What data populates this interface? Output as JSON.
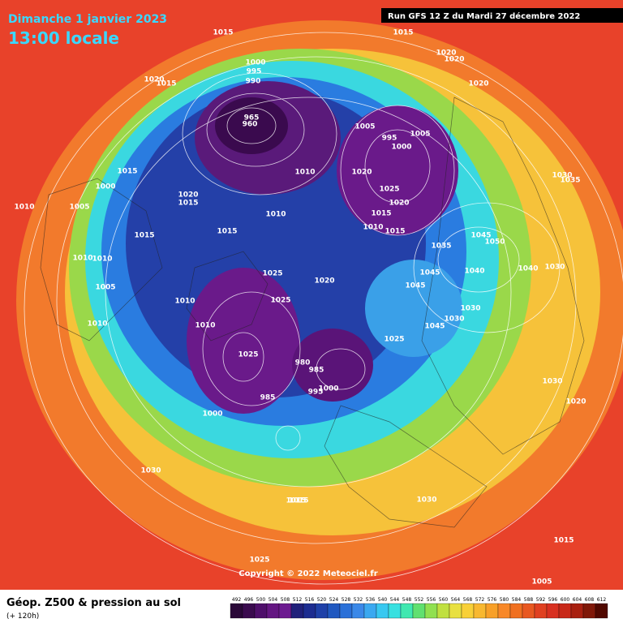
{
  "header": {
    "date": "Dimanche 1 janvier 2023",
    "time": "13:00 locale",
    "run": "Run GFS 12 Z du Mardi 27 décembre 2022"
  },
  "copyright": "Copyright © 2022 Meteociel.fr",
  "footer": {
    "title": "Géop. Z500 & pression au sol",
    "subtitle": "(+ 120h)"
  },
  "colorbar": {
    "ticks": [
      492,
      496,
      500,
      504,
      508,
      512,
      516,
      520,
      524,
      528,
      532,
      536,
      540,
      544,
      548,
      552,
      556,
      560,
      564,
      568,
      572,
      576,
      580,
      584,
      588,
      592,
      596,
      600,
      604,
      608,
      612
    ],
    "colors": [
      "#2a0838",
      "#3a0a4e",
      "#4e0e6a",
      "#641682",
      "#6c1a90",
      "#20207a",
      "#1c2c90",
      "#1e40a8",
      "#2058c0",
      "#2a70d8",
      "#3a88e8",
      "#3aa8f0",
      "#38c8f0",
      "#38e0e0",
      "#40e8b0",
      "#60e070",
      "#90e050",
      "#c0e040",
      "#e8e040",
      "#f8d038",
      "#f8b830",
      "#f8a028",
      "#f88828",
      "#f07020",
      "#e85820",
      "#e04020",
      "#d83020",
      "#c82818",
      "#a82010",
      "#801808",
      "#500800"
    ]
  },
  "isobar_labels": [
    "1015",
    "1015",
    "1010",
    "1020",
    "1015",
    "1020",
    "1020",
    "1020",
    "1000",
    "995",
    "990",
    "965",
    "960",
    "1005",
    "995",
    "1000",
    "1005",
    "1010",
    "1020",
    "1025",
    "1020",
    "1015",
    "1010",
    "1015",
    "1015",
    "1000",
    "1005",
    "1015",
    "1010",
    "1010",
    "1005",
    "1020",
    "1015",
    "1010",
    "1015",
    "1025",
    "1025",
    "1020",
    "1010",
    "1010",
    "1035",
    "1045",
    "1050",
    "1045",
    "1040",
    "1030",
    "1030",
    "1045",
    "1045",
    "1030",
    "1035",
    "1040",
    "1030",
    "1020",
    "1025",
    "1030",
    "1000",
    "985",
    "980",
    "995",
    "1000",
    "985",
    "1025",
    "1030",
    "1015",
    "1030",
    "1025",
    "1015",
    "1005",
    "1015",
    "1010"
  ]
}
